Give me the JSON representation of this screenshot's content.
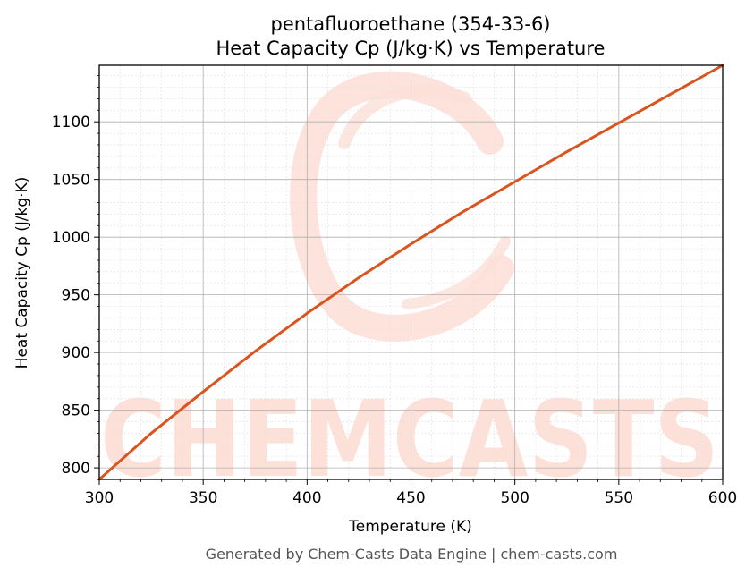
{
  "colors": {
    "line": "#d9541e",
    "watermark": "#fde0d8",
    "grid_major": "#b0b0b0",
    "grid_minor": "#e4e4e4"
  },
  "watermark": {
    "text": "CHEMCASTS"
  },
  "footer": "Generated by Chem-Casts Data Engine | chem-casts.com",
  "chart_data": {
    "type": "line",
    "title": [
      "pentafluoroethane (354-33-6)",
      "Heat Capacity Cp (J/kg·K) vs Temperature"
    ],
    "xlabel": "Temperature (K)",
    "ylabel": "Heat Capacity Cp (J/kg·K)",
    "xlim": [
      300,
      600
    ],
    "ylim": [
      790,
      1149
    ],
    "xticks": [
      300,
      350,
      400,
      450,
      500,
      550,
      600
    ],
    "yticks": [
      800,
      850,
      900,
      950,
      1000,
      1050,
      1100
    ],
    "grid": true,
    "legend": "none",
    "series": [
      {
        "x": [
          300,
          325,
          350,
          375,
          400,
          425,
          450,
          475,
          500,
          525,
          550,
          575,
          600
        ],
        "y": [
          790,
          830,
          866,
          901,
          934,
          965,
          994,
          1022,
          1048,
          1074,
          1099,
          1124,
          1149
        ]
      }
    ]
  }
}
